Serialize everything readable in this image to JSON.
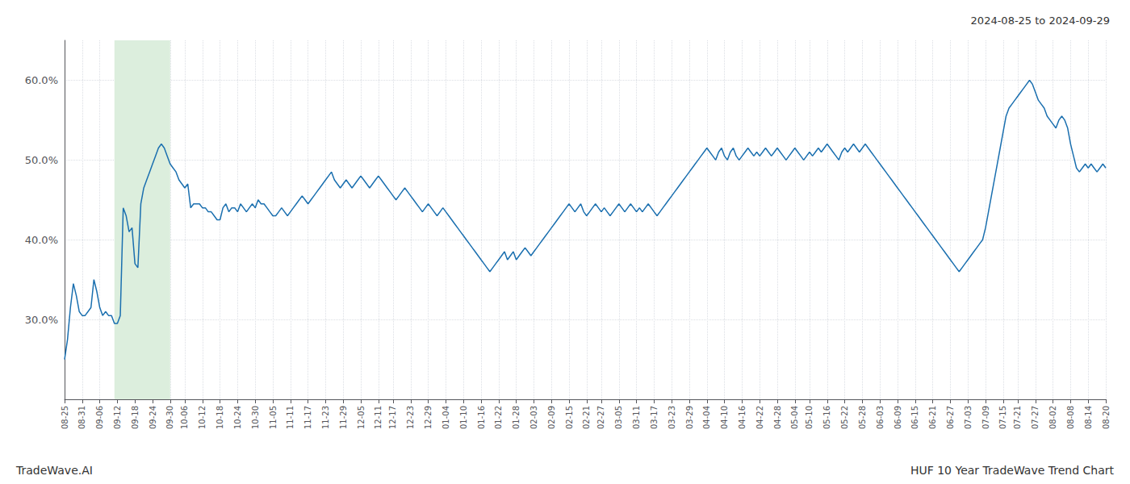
{
  "chart_data": {
    "type": "line",
    "title": "2024-08-25 to 2024-09-29",
    "annotations": [
      "TradeWave.AI",
      "HUF 10 Year TradeWave Trend Chart"
    ],
    "color": "#1a6faf",
    "grid": true,
    "ylim": [
      20.0,
      65.0
    ],
    "yticks": [
      {
        "value": 30.0,
        "label": "30.0%"
      },
      {
        "value": 40.0,
        "label": "40.0%"
      },
      {
        "value": 50.0,
        "label": "50.0%"
      },
      {
        "value": 60.0,
        "label": "60.0%"
      }
    ],
    "highlight": {
      "x_start": 17,
      "x_end": 36,
      "color": "#dceedd"
    },
    "categories": [
      "08-25",
      null,
      null,
      null,
      null,
      null,
      "08-31",
      null,
      null,
      null,
      null,
      null,
      "09-06",
      null,
      null,
      null,
      null,
      null,
      "09-12",
      null,
      null,
      null,
      null,
      null,
      "09-18",
      null,
      null,
      null,
      null,
      null,
      "09-24",
      null,
      null,
      null,
      null,
      null,
      "09-30",
      null,
      null,
      null,
      null,
      "10-06",
      null,
      null,
      null,
      null,
      null,
      "10-12",
      null,
      null,
      null,
      null,
      null,
      "10-18",
      null,
      null,
      null,
      null,
      null,
      "10-24",
      null,
      null,
      null,
      null,
      null,
      "10-30",
      null,
      null,
      null,
      null,
      null,
      "11-05",
      null,
      null,
      null,
      null,
      null,
      "11-11",
      null,
      null,
      null,
      null,
      null,
      "11-17",
      null,
      null,
      null,
      null,
      null,
      "11-23",
      null,
      null,
      null,
      null,
      null,
      "11-29",
      null,
      null,
      null,
      null,
      null,
      "12-05",
      null,
      null,
      null,
      null,
      null,
      "12-11",
      null,
      null,
      null,
      null,
      "12-17",
      null,
      null,
      null,
      null,
      null,
      "12-23",
      null,
      null,
      null,
      null,
      null,
      "12-29",
      null,
      null,
      null,
      null,
      null,
      "01-04",
      null,
      null,
      null,
      null,
      null,
      "01-10",
      null,
      null,
      null,
      null,
      null,
      "01-16",
      null,
      null,
      null,
      null,
      null,
      "01-22",
      null,
      null,
      null,
      null,
      null,
      "01-28",
      null,
      null,
      null,
      null,
      null,
      "02-03",
      null,
      null,
      null,
      null,
      null,
      "02-09",
      null,
      null,
      null,
      null,
      null,
      "02-15",
      null,
      null,
      null,
      null,
      null,
      "02-21",
      null,
      null,
      null,
      null,
      "02-27",
      null,
      null,
      null,
      null,
      null,
      "03-05",
      null,
      null,
      null,
      null,
      null,
      "03-11",
      null,
      null,
      null,
      null,
      null,
      "03-17",
      null,
      null,
      null,
      null,
      null,
      "03-23",
      null,
      null,
      null,
      null,
      null,
      "03-29",
      null,
      null,
      null,
      null,
      null,
      "04-04",
      null,
      null,
      null,
      null,
      null,
      "04-10",
      null,
      null,
      null,
      null,
      null,
      "04-16",
      null,
      null,
      null,
      null,
      null,
      "04-22",
      null,
      null,
      null,
      null,
      null,
      "04-28",
      null,
      null,
      null,
      null,
      null,
      "05-04",
      null,
      null,
      null,
      null,
      "05-10",
      null,
      null,
      null,
      null,
      null,
      "05-16",
      null,
      null,
      null,
      null,
      null,
      "05-22",
      null,
      null,
      null,
      null,
      null,
      "05-28",
      null,
      null,
      null,
      null,
      null,
      "06-03",
      null,
      null,
      null,
      null,
      null,
      "06-09",
      null,
      null,
      null,
      null,
      null,
      "06-15",
      null,
      null,
      null,
      null,
      null,
      "06-21",
      null,
      null,
      null,
      null,
      null,
      "06-27",
      null,
      null,
      null,
      null,
      null,
      "07-03",
      null,
      null,
      null,
      null,
      null,
      "07-09",
      null,
      null,
      null,
      null,
      null,
      "07-15",
      null,
      null,
      null,
      null,
      "07-21",
      null,
      null,
      null,
      null,
      null,
      "07-27",
      null,
      null,
      null,
      null,
      null,
      "08-02",
      null,
      null,
      null,
      null,
      null,
      "08-08",
      null,
      null,
      null,
      null,
      null,
      "08-14",
      null,
      null,
      null,
      null,
      null,
      "08-20"
    ],
    "values": [
      25.0,
      27.5,
      31.5,
      34.5,
      33.0,
      31.0,
      30.5,
      30.5,
      31.0,
      31.5,
      35.0,
      33.5,
      31.5,
      30.5,
      31.0,
      30.5,
      30.5,
      29.5,
      29.5,
      30.5,
      44.0,
      43.0,
      41.0,
      41.5,
      37.0,
      36.5,
      44.5,
      46.5,
      47.5,
      48.5,
      49.5,
      50.5,
      51.5,
      52.0,
      51.5,
      50.5,
      49.5,
      49.0,
      48.5,
      47.5,
      47.0,
      46.5,
      47.0,
      44.0,
      44.5,
      44.5,
      44.5,
      44.0,
      44.0,
      43.5,
      43.5,
      43.0,
      42.5,
      42.5,
      44.0,
      44.5,
      43.5,
      44.0,
      44.0,
      43.5,
      44.5,
      44.0,
      43.5,
      44.0,
      44.5,
      44.0,
      45.0,
      44.5,
      44.5,
      44.0,
      43.5,
      43.0,
      43.0,
      43.5,
      44.0,
      43.5,
      43.0,
      43.5,
      44.0,
      44.5,
      45.0,
      45.5,
      45.0,
      44.5,
      45.0,
      45.5,
      46.0,
      46.5,
      47.0,
      47.5,
      48.0,
      48.5,
      47.5,
      47.0,
      46.5,
      47.0,
      47.5,
      47.0,
      46.5,
      47.0,
      47.5,
      48.0,
      47.5,
      47.0,
      46.5,
      47.0,
      47.5,
      48.0,
      47.5,
      47.0,
      46.5,
      46.0,
      45.5,
      45.0,
      45.5,
      46.0,
      46.5,
      46.0,
      45.5,
      45.0,
      44.5,
      44.0,
      43.5,
      44.0,
      44.5,
      44.0,
      43.5,
      43.0,
      43.5,
      44.0,
      43.5,
      43.0,
      42.5,
      42.0,
      41.5,
      41.0,
      40.5,
      40.0,
      39.5,
      39.0,
      38.5,
      38.0,
      37.5,
      37.0,
      36.5,
      36.0,
      36.5,
      37.0,
      37.5,
      38.0,
      38.5,
      37.5,
      38.0,
      38.5,
      37.5,
      38.0,
      38.5,
      39.0,
      38.5,
      38.0,
      38.5,
      39.0,
      39.5,
      40.0,
      40.5,
      41.0,
      41.5,
      42.0,
      42.5,
      43.0,
      43.5,
      44.0,
      44.5,
      44.0,
      43.5,
      44.0,
      44.5,
      43.5,
      43.0,
      43.5,
      44.0,
      44.5,
      44.0,
      43.5,
      44.0,
      43.5,
      43.0,
      43.5,
      44.0,
      44.5,
      44.0,
      43.5,
      44.0,
      44.5,
      44.0,
      43.5,
      44.0,
      43.5,
      44.0,
      44.5,
      44.0,
      43.5,
      43.0,
      43.5,
      44.0,
      44.5,
      45.0,
      45.5,
      46.0,
      46.5,
      47.0,
      47.5,
      48.0,
      48.5,
      49.0,
      49.5,
      50.0,
      50.5,
      51.0,
      51.5,
      51.0,
      50.5,
      50.0,
      51.0,
      51.5,
      50.5,
      50.0,
      51.0,
      51.5,
      50.5,
      50.0,
      50.5,
      51.0,
      51.5,
      51.0,
      50.5,
      51.0,
      50.5,
      51.0,
      51.5,
      51.0,
      50.5,
      51.0,
      51.5,
      51.0,
      50.5,
      50.0,
      50.5,
      51.0,
      51.5,
      51.0,
      50.5,
      50.0,
      50.5,
      51.0,
      50.5,
      51.0,
      51.5,
      51.0,
      51.5,
      52.0,
      51.5,
      51.0,
      50.5,
      50.0,
      51.0,
      51.5,
      51.0,
      51.5,
      52.0,
      51.5,
      51.0,
      51.5,
      52.0,
      51.5,
      51.0,
      50.5,
      50.0,
      49.5,
      49.0,
      48.5,
      48.0,
      47.5,
      47.0,
      46.5,
      46.0,
      45.5,
      45.0,
      44.5,
      44.0,
      43.5,
      43.0,
      42.5,
      42.0,
      41.5,
      41.0,
      40.5,
      40.0,
      39.5,
      39.0,
      38.5,
      38.0,
      37.5,
      37.0,
      36.5,
      36.0,
      36.5,
      37.0,
      37.5,
      38.0,
      38.5,
      39.0,
      39.5,
      40.0,
      41.5,
      43.5,
      45.5,
      47.5,
      49.5,
      51.5,
      53.5,
      55.5,
      56.5,
      57.0,
      57.5,
      58.0,
      58.5,
      59.0,
      59.5,
      60.0,
      59.5,
      58.5,
      57.5,
      57.0,
      56.5,
      55.5,
      55.0,
      54.5,
      54.0,
      55.0,
      55.5,
      55.0,
      54.0,
      52.0,
      50.5,
      49.0,
      48.5,
      49.0,
      49.5,
      49.0,
      49.5,
      49.0,
      48.5,
      49.0,
      49.5,
      49.0
    ]
  }
}
